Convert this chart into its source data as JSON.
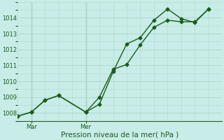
{
  "title": "",
  "xlabel": "Pression niveau de la mer( hPa )",
  "bg_color": "#c8ece8",
  "grid_color": "#b0d8d0",
  "line_color": "#1a5c1a",
  "ylim": [
    1007.5,
    1015.0
  ],
  "xlim": [
    0.0,
    15.0
  ],
  "yticks": [
    1008,
    1009,
    1010,
    1011,
    1012,
    1013,
    1014
  ],
  "ytick_top": 1015,
  "xtick_positions": [
    1.0,
    5.0
  ],
  "xtick_labels": [
    "Mar",
    "Mer"
  ],
  "vline_x1": 1.0,
  "vline_x2": 5.0,
  "line1_x": [
    0,
    1,
    2,
    3,
    5,
    6,
    7,
    8,
    9,
    10,
    11,
    12,
    13,
    14
  ],
  "line1_y": [
    1007.8,
    1008.05,
    1008.8,
    1009.1,
    1008.05,
    1008.55,
    1010.6,
    1012.35,
    1012.75,
    1013.85,
    1014.55,
    1013.95,
    1013.7,
    1014.55
  ],
  "line2_x": [
    0,
    1,
    2,
    3,
    5,
    6,
    7,
    8,
    9,
    10,
    11,
    12,
    13,
    14
  ],
  "line2_y": [
    1007.8,
    1008.05,
    1008.8,
    1009.1,
    1008.05,
    1009.0,
    1010.75,
    1011.05,
    1012.3,
    1013.4,
    1013.85,
    1013.75,
    1013.75,
    1014.55
  ],
  "marker_size": 2.5,
  "line_width": 1.0,
  "tick_fontsize": 6,
  "xlabel_fontsize": 7.5
}
